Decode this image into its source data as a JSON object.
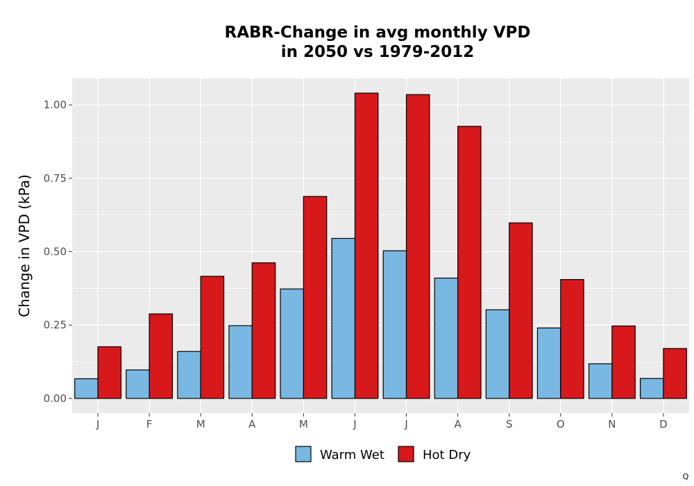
{
  "chart_data": {
    "type": "bar",
    "title_lines": [
      "RABR-Change in avg monthly VPD",
      "in 2050 vs 1979-2012"
    ],
    "xlabel": "",
    "ylabel": "Change in VPD (kPa)",
    "categories": [
      "J",
      "F",
      "M",
      "A",
      "M",
      "J",
      "J",
      "A",
      "S",
      "O",
      "N",
      "D"
    ],
    "series": [
      {
        "name": "Warm Wet",
        "color": "#78b8e3",
        "values": [
          0.067,
          0.097,
          0.16,
          0.248,
          0.373,
          0.545,
          0.503,
          0.41,
          0.302,
          0.24,
          0.118,
          0.068
        ]
      },
      {
        "name": "Hot Dry",
        "color": "#d7191c",
        "values": [
          0.176,
          0.288,
          0.416,
          0.462,
          0.688,
          1.04,
          1.035,
          0.927,
          0.598,
          0.405,
          0.247,
          0.17
        ]
      }
    ],
    "ylim": [
      -0.05,
      1.09
    ],
    "yticks": [
      0,
      0.25,
      0.5,
      0.75,
      1
    ],
    "ytick_labels": [
      "0.00",
      "0.25",
      "0.50",
      "0.75",
      "1.00"
    ],
    "grid": true,
    "legend_position": "bottom"
  },
  "corner_note": "Q"
}
